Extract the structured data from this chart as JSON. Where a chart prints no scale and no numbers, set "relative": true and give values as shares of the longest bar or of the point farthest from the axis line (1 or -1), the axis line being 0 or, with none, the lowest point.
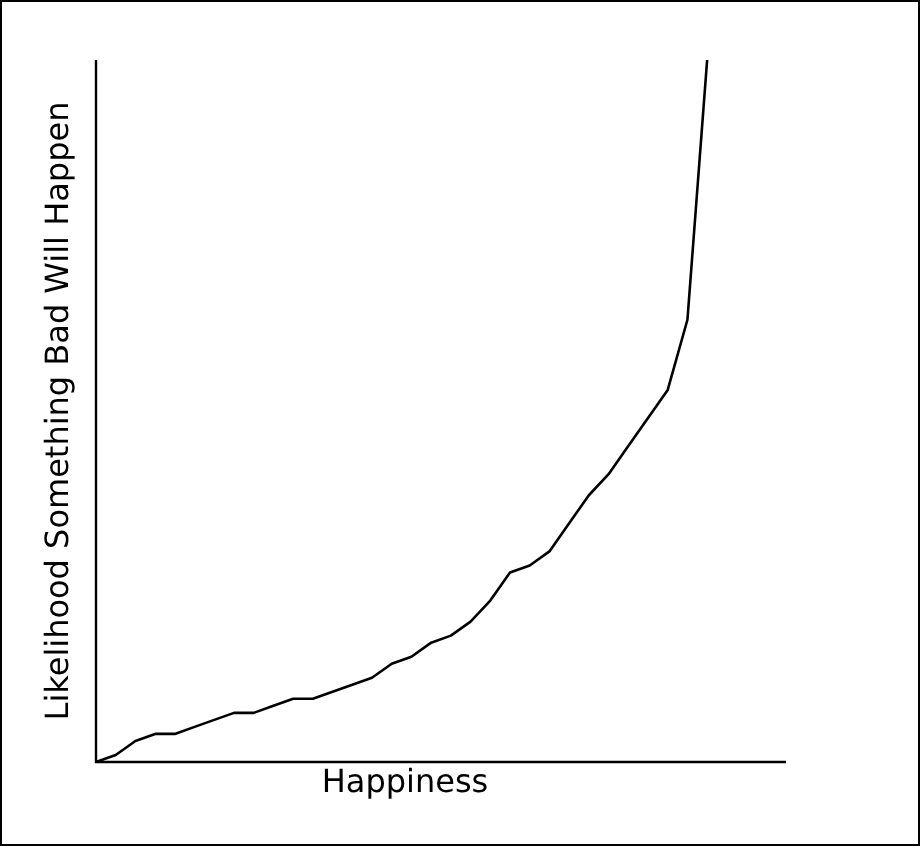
{
  "chart_data": {
    "type": "line",
    "relative": true,
    "xlabel": "Happiness",
    "ylabel": "Likelihood Something Bad Will Happen",
    "legend": false,
    "marker": "none",
    "line_style": "solid",
    "categories": [
      null,
      null,
      null,
      null,
      null,
      null,
      null,
      null,
      null,
      null,
      null,
      null,
      null,
      null,
      null,
      null,
      null,
      null,
      null,
      null,
      null,
      null,
      null,
      null,
      null,
      null,
      null,
      null,
      null,
      null,
      null,
      null,
      null,
      null,
      null,
      null
    ],
    "series": [
      {
        "color": "#000000",
        "values": [
          0,
          0.01,
          0.03,
          0.04,
          0.04,
          0.05,
          0.06,
          0.07,
          0.07,
          0.08,
          0.09,
          0.09,
          0.1,
          0.11,
          0.12,
          0.14,
          0.15,
          0.17,
          0.18,
          0.2,
          0.23,
          0.27,
          0.28,
          0.3,
          0.34,
          0.38,
          0.41,
          0.45,
          0.49,
          0.53,
          0.63,
          1,
          null,
          null,
          null,
          null
        ]
      }
    ]
  }
}
